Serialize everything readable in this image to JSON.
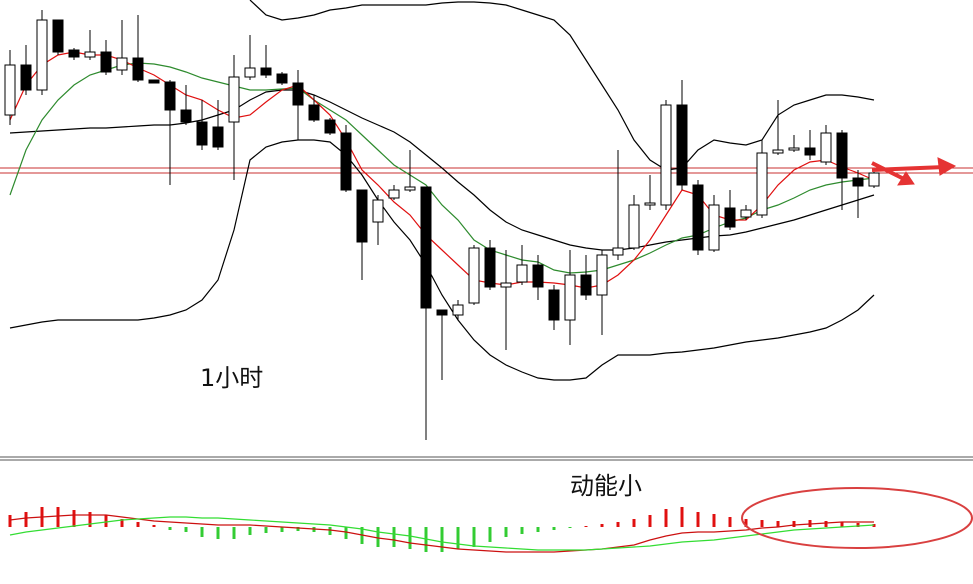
{
  "chart_data": [
    {
      "type": "candlestick",
      "annotation": "1小时",
      "ylim": [
        0,
        460
      ],
      "up_color": "#ffffff",
      "down_color": "#000000",
      "open": [
        345,
        395,
        370,
        440,
        410,
        403,
        408,
        390,
        402,
        380,
        378,
        350,
        338,
        333,
        338,
        383,
        392,
        386,
        377,
        355,
        340,
        327,
        270,
        238,
        262,
        270,
        273,
        150,
        145,
        157,
        212,
        173,
        178,
        195,
        170,
        140,
        185,
        165,
        205,
        212,
        255,
        255,
        355,
        275,
        210,
        252,
        243,
        245,
        307,
        310,
        312,
        298,
        327,
        282,
        274
      ],
      "high": [
        410,
        415,
        450,
        440,
        412,
        430,
        420,
        440,
        445,
        380,
        380,
        375,
        360,
        360,
        405,
        425,
        415,
        388,
        390,
        365,
        342,
        335,
        270,
        265,
        275,
        310,
        273,
        150,
        160,
        215,
        220,
        210,
        215,
        205,
        175,
        210,
        205,
        210,
        310,
        265,
        285,
        360,
        380,
        280,
        265,
        270,
        255,
        320,
        360,
        325,
        330,
        335,
        330,
        290,
        288
      ],
      "low": [
        335,
        365,
        365,
        405,
        400,
        400,
        385,
        385,
        378,
        377,
        275,
        335,
        310,
        310,
        280,
        380,
        382,
        375,
        320,
        338,
        325,
        268,
        180,
        215,
        260,
        268,
        20,
        80,
        140,
        155,
        170,
        110,
        175,
        160,
        130,
        115,
        160,
        125,
        200,
        210,
        250,
        250,
        270,
        205,
        208,
        230,
        240,
        242,
        305,
        308,
        300,
        295,
        250,
        242,
        272
      ],
      "close": [
        395,
        370,
        440,
        408,
        403,
        408,
        388,
        402,
        380,
        377,
        350,
        338,
        315,
        313,
        383,
        392,
        385,
        377,
        355,
        340,
        327,
        270,
        218,
        260,
        270,
        273,
        152,
        145,
        155,
        212,
        173,
        177,
        195,
        173,
        140,
        185,
        165,
        205,
        212,
        255,
        257,
        355,
        275,
        210,
        255,
        233,
        250,
        307,
        310,
        312,
        305,
        327,
        282,
        274,
        287
      ],
      "lines": [
        {
          "color": "#000000",
          "values": [
            null,
            null,
            null,
            null,
            null,
            null,
            null,
            null,
            null,
            null,
            null,
            null,
            null,
            null,
            null,
            460,
            445,
            440,
            442,
            445,
            450,
            452,
            455,
            455,
            455,
            455,
            455,
            457,
            458,
            458,
            457,
            455,
            450,
            445,
            440,
            425,
            400,
            375,
            350,
            320,
            300,
            290,
            292,
            310,
            320,
            317,
            315,
            320,
            345,
            355,
            360,
            365,
            365,
            363,
            360
          ]
        },
        {
          "color": "#000000",
          "values": [
            327,
            328,
            329,
            330,
            331,
            332,
            332,
            333,
            334,
            335,
            335,
            337,
            340,
            345,
            350,
            360,
            368,
            370,
            370,
            365,
            358,
            350,
            342,
            335,
            328,
            318,
            305,
            292,
            278,
            265,
            250,
            238,
            230,
            225,
            220,
            215,
            212,
            210,
            210,
            212,
            215,
            218,
            220,
            222,
            224,
            225,
            228,
            232,
            236,
            240,
            245,
            250,
            255,
            260,
            265
          ]
        },
        {
          "color": "#000000",
          "values": [
            132,
            135,
            138,
            140,
            140,
            140,
            140,
            140,
            140,
            142,
            145,
            150,
            160,
            180,
            230,
            300,
            313,
            318,
            320,
            320,
            318,
            305,
            285,
            260,
            238,
            220,
            195,
            165,
            140,
            120,
            105,
            95,
            88,
            82,
            80,
            80,
            82,
            95,
            105,
            105,
            105,
            107,
            108,
            110,
            112,
            115,
            118,
            120,
            122,
            125,
            128,
            132,
            140,
            150,
            165
          ]
        },
        {
          "color": "#2e8b2e",
          "values": [
            265,
            310,
            340,
            360,
            375,
            385,
            390,
            395,
            397,
            396,
            393,
            388,
            382,
            378,
            374,
            370,
            370,
            371,
            372,
            360,
            350,
            340,
            325,
            310,
            295,
            285,
            275,
            255,
            240,
            220,
            210,
            205,
            200,
            198,
            190,
            187,
            188,
            190,
            195,
            200,
            207,
            215,
            222,
            225,
            232,
            238,
            242,
            250,
            255,
            262,
            270,
            275,
            278,
            280,
            282
          ]
        },
        {
          "color": "#e01010",
          "values": [
            340,
            375,
            395,
            405,
            408,
            405,
            405,
            400,
            392,
            385,
            375,
            365,
            360,
            350,
            342,
            345,
            358,
            370,
            375,
            360,
            345,
            320,
            290,
            275,
            258,
            245,
            225,
            210,
            195,
            180,
            177,
            175,
            178,
            178,
            177,
            175,
            172,
            175,
            185,
            200,
            220,
            245,
            270,
            265,
            245,
            240,
            240,
            255,
            275,
            290,
            298,
            300,
            293,
            287,
            280
          ]
        }
      ],
      "hlines": [
        292,
        287
      ],
      "hline_color": "#c83030"
    },
    {
      "type": "macd",
      "annotation": "动能小",
      "ylim": [
        -57,
        63
      ],
      "up_color": "#e01010",
      "down_color": "#33cc33",
      "values": [
        12,
        15,
        20,
        20,
        17,
        15,
        12,
        8,
        5,
        2,
        -3,
        -5,
        -10,
        -12,
        -12,
        -8,
        -6,
        -5,
        -4,
        -5,
        -8,
        -12,
        -17,
        -20,
        -20,
        -22,
        -25,
        -25,
        -22,
        -20,
        -15,
        -10,
        -7,
        -5,
        -3,
        -1,
        1,
        3,
        5,
        8,
        12,
        18,
        20,
        15,
        13,
        10,
        8,
        7,
        6,
        6,
        7,
        6,
        5,
        4,
        3
      ],
      "lines": [
        {
          "color": "#cc1010",
          "values": [
            7,
            9,
            10,
            11,
            12,
            12,
            12,
            10,
            8,
            6,
            5,
            4,
            3,
            2,
            2,
            2,
            1,
            0,
            -1,
            -2,
            -3,
            -5,
            -8,
            -11,
            -13,
            -16,
            -18,
            -20,
            -22,
            -23,
            -24,
            -25,
            -25,
            -25,
            -25,
            -24,
            -23,
            -22,
            -20,
            -18,
            -13,
            -9,
            -6,
            -5,
            -5,
            -4,
            -3,
            -1,
            0,
            2,
            3,
            4,
            5,
            5,
            5
          ]
        },
        {
          "color": "#33dd33",
          "values": [
            -8,
            -5,
            -3,
            -1,
            1,
            3,
            5,
            7,
            8,
            9,
            10,
            10,
            9,
            9,
            8,
            7,
            6,
            5,
            4,
            3,
            2,
            0,
            -2,
            -5,
            -7,
            -9,
            -12,
            -15,
            -17,
            -19,
            -20,
            -21,
            -22,
            -23,
            -23,
            -23,
            -23,
            -22,
            -21,
            -20,
            -19,
            -17,
            -15,
            -14,
            -13,
            -11,
            -9,
            -7,
            -5,
            -3,
            -2,
            -1,
            0,
            1,
            2
          ]
        }
      ]
    }
  ]
}
